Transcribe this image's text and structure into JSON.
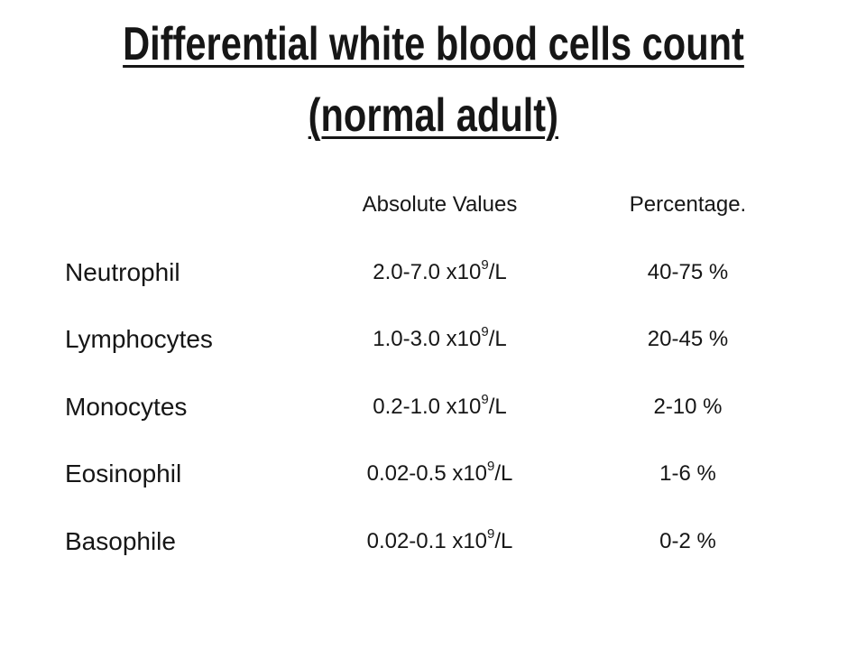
{
  "slide": {
    "title_line1": "Differential white blood cells count",
    "title_line2": "(normal adult)"
  },
  "table": {
    "headers": {
      "absolute": "Absolute Values",
      "percentage": "Percentage."
    },
    "rows": [
      {
        "name": "Neutrophil",
        "abs_base": "2.0-7.0 x10",
        "abs_exp": "9",
        "abs_unit": "/L",
        "pct": "40-75 %"
      },
      {
        "name": "Lymphocytes",
        "abs_base": "1.0-3.0 x10",
        "abs_exp": "9",
        "abs_unit": "/L",
        "pct": "20-45 %"
      },
      {
        "name": "Monocytes",
        "abs_base": "0.2-1.0 x10",
        "abs_exp": "9",
        "abs_unit": "/L",
        "pct": "2-10 %"
      },
      {
        "name": "Eosinophil",
        "abs_base": "0.02-0.5 x10",
        "abs_exp": "9",
        "abs_unit": "/L",
        "pct": "1-6 %"
      },
      {
        "name": "Basophile",
        "abs_base": "0.02-0.1 x10",
        "abs_exp": "9",
        "abs_unit": "/L",
        "pct": "0-2 %"
      }
    ]
  },
  "colors": {
    "background": "#ffffff",
    "text": "#161616"
  }
}
